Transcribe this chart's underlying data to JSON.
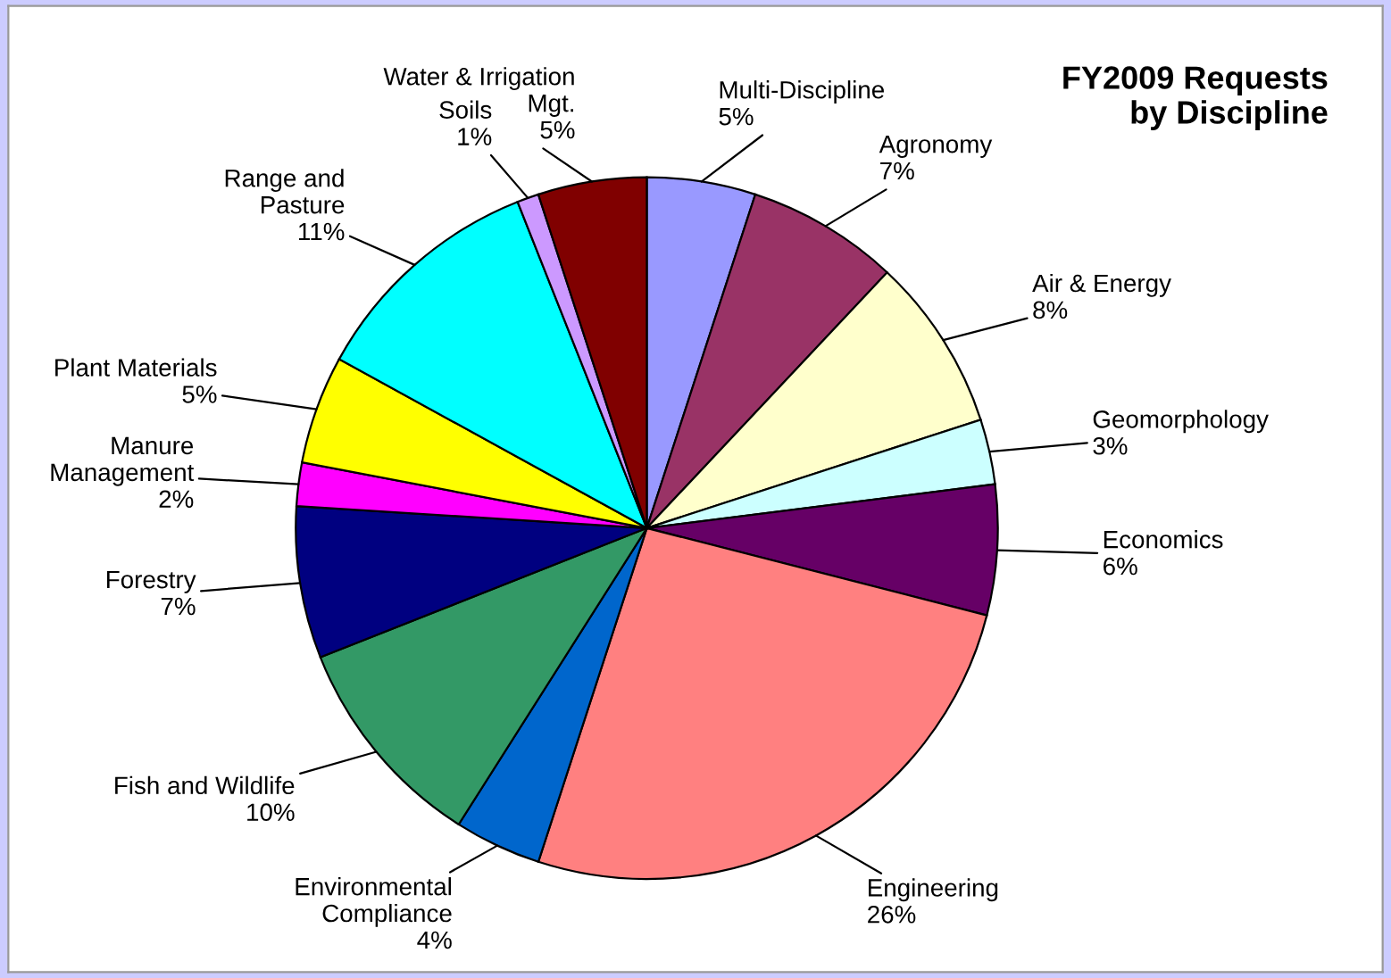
{
  "chart_data": {
    "type": "pie",
    "title": "FY2009 Requests\nby Discipline",
    "categories": [
      "Multi-Discipline",
      "Agronomy",
      "Air & Energy",
      "Geomorphology",
      "Economics",
      "Engineering",
      "Environmental\nCompliance",
      "Fish and Wildlife",
      "Forestry",
      "Manure\nManagement",
      "Plant Materials",
      "Range and\nPasture",
      "Soils",
      "Water & Irrigation\nMgt."
    ],
    "values": [
      5,
      7,
      8,
      3,
      6,
      26,
      4,
      10,
      7,
      2,
      5,
      11,
      1,
      5
    ],
    "value_labels": [
      "5%",
      "7%",
      "8%",
      "3%",
      "6%",
      "26%",
      "4%",
      "10%",
      "7%",
      "2%",
      "5%",
      "11%",
      "1%",
      "5%"
    ],
    "colors": [
      "#9999ff",
      "#993366",
      "#ffffcc",
      "#ccffff",
      "#660066",
      "#ff8080",
      "#0066cc",
      "#339966",
      "#000080",
      "#ff00ff",
      "#ffff00",
      "#00ffff",
      "#cc99ff",
      "#800000"
    ],
    "legend": false
  }
}
